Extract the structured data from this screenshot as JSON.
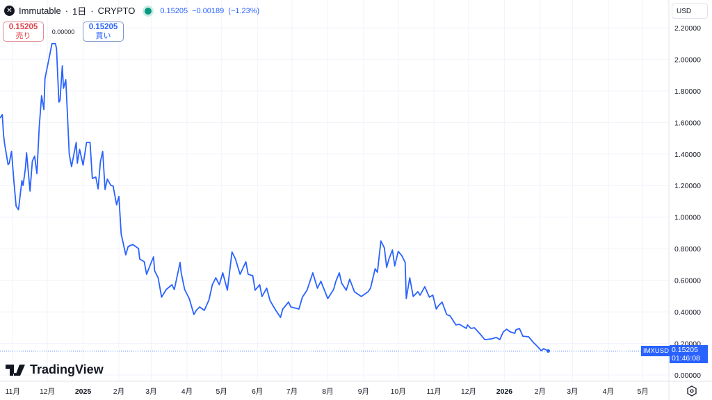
{
  "header": {
    "symbol": "Immutable",
    "interval": "1日",
    "exchange": "CRYPTO",
    "price": "0.15205",
    "change": "−0.00189",
    "change_pct": "(−1.23%)",
    "separator": "·"
  },
  "trade": {
    "sell_price": "0.15205",
    "sell_label": "売り",
    "spread": "0.00000",
    "buy_price": "0.15205",
    "buy_label": "買い"
  },
  "currency": "USD",
  "brand": "TradingView",
  "last": {
    "symbol": "IMXUSD",
    "price": "0.15205",
    "countdown": "01:46:08"
  },
  "colors": {
    "line": "#2962ff",
    "grid": "#f0f3fa",
    "axis_text": "#131722"
  },
  "chart_data": {
    "type": "line",
    "series_name": "IMXUSD",
    "x_unit": "days since 2024-10-21",
    "ylim": [
      0,
      2.2
    ],
    "y_ticks": [
      "0.00000",
      "0.20000",
      "0.40000",
      "0.60000",
      "0.80000",
      "1.00000",
      "1.20000",
      "1.40000",
      "1.60000",
      "1.80000",
      "2.00000",
      "2.20000"
    ],
    "x_ticks": [
      {
        "label": "11月",
        "day": 11
      },
      {
        "label": "12月",
        "day": 41
      },
      {
        "label": "2025",
        "day": 72
      },
      {
        "label": "2月",
        "day": 103
      },
      {
        "label": "3月",
        "day": 131
      },
      {
        "label": "4月",
        "day": 162
      },
      {
        "label": "5月",
        "day": 192
      },
      {
        "label": "6月",
        "day": 223
      },
      {
        "label": "7月",
        "day": 253
      },
      {
        "label": "8月",
        "day": 284
      },
      {
        "label": "9月",
        "day": 315
      },
      {
        "label": "10月",
        "day": 345
      },
      {
        "label": "11月",
        "day": 376
      },
      {
        "label": "12月",
        "day": 406
      },
      {
        "label": "2026",
        "day": 437
      },
      {
        "label": "2月",
        "day": 468
      },
      {
        "label": "3月",
        "day": 496
      },
      {
        "label": "4月",
        "day": 527
      },
      {
        "label": "5月",
        "day": 557
      }
    ],
    "points": [
      [
        0,
        1.628
      ],
      [
        2,
        1.65
      ],
      [
        3,
        1.527
      ],
      [
        4,
        1.465
      ],
      [
        7,
        1.333
      ],
      [
        8,
        1.342
      ],
      [
        10,
        1.417
      ],
      [
        12,
        1.232
      ],
      [
        14,
        1.069
      ],
      [
        16,
        1.047
      ],
      [
        19,
        1.232
      ],
      [
        20,
        1.201
      ],
      [
        22,
        1.307
      ],
      [
        23,
        1.408
      ],
      [
        26,
        1.166
      ],
      [
        28,
        1.355
      ],
      [
        30,
        1.386
      ],
      [
        32,
        1.276
      ],
      [
        34,
        1.571
      ],
      [
        36,
        1.769
      ],
      [
        38,
        1.681
      ],
      [
        39,
        1.879
      ],
      [
        43,
        2.024
      ],
      [
        45,
        2.099
      ],
      [
        48,
        2.099
      ],
      [
        49,
        2.068
      ],
      [
        51,
        1.729
      ],
      [
        52,
        1.738
      ],
      [
        54,
        1.958
      ],
      [
        55,
        1.817
      ],
      [
        57,
        1.87
      ],
      [
        58,
        1.716
      ],
      [
        60,
        1.399
      ],
      [
        62,
        1.32
      ],
      [
        66,
        1.474
      ],
      [
        67,
        1.342
      ],
      [
        69,
        1.43
      ],
      [
        72,
        1.329
      ],
      [
        75,
        1.474
      ],
      [
        78,
        1.474
      ],
      [
        80,
        1.245
      ],
      [
        83,
        1.254
      ],
      [
        85,
        1.179
      ],
      [
        87,
        1.351
      ],
      [
        89,
        1.417
      ],
      [
        91,
        1.175
      ],
      [
        93,
        1.241
      ],
      [
        96,
        1.201
      ],
      [
        98,
        1.197
      ],
      [
        101,
        1.078
      ],
      [
        103,
        1.131
      ],
      [
        105,
        0.893
      ],
      [
        109,
        0.761
      ],
      [
        111,
        0.814
      ],
      [
        115,
        0.827
      ],
      [
        120,
        0.801
      ],
      [
        121,
        0.735
      ],
      [
        125,
        0.717
      ],
      [
        127,
        0.638
      ],
      [
        131,
        0.713
      ],
      [
        133,
        0.748
      ],
      [
        134,
        0.66
      ],
      [
        137,
        0.616
      ],
      [
        140,
        0.493
      ],
      [
        144,
        0.541
      ],
      [
        149,
        0.572
      ],
      [
        151,
        0.541
      ],
      [
        156,
        0.713
      ],
      [
        157,
        0.647
      ],
      [
        160,
        0.541
      ],
      [
        164,
        0.484
      ],
      [
        168,
        0.383
      ],
      [
        170,
        0.409
      ],
      [
        173,
        0.431
      ],
      [
        177,
        0.409
      ],
      [
        181,
        0.475
      ],
      [
        184,
        0.572
      ],
      [
        187,
        0.616
      ],
      [
        190,
        0.572
      ],
      [
        193,
        0.647
      ],
      [
        197,
        0.537
      ],
      [
        201,
        0.779
      ],
      [
        204,
        0.735
      ],
      [
        208,
        0.638
      ],
      [
        213,
        0.717
      ],
      [
        215,
        0.638
      ],
      [
        219,
        0.629
      ],
      [
        221,
        0.537
      ],
      [
        225,
        0.572
      ],
      [
        227,
        0.497
      ],
      [
        231,
        0.55
      ],
      [
        234,
        0.471
      ],
      [
        239,
        0.409
      ],
      [
        243,
        0.365
      ],
      [
        245,
        0.418
      ],
      [
        250,
        0.462
      ],
      [
        252,
        0.431
      ],
      [
        259,
        0.418
      ],
      [
        262,
        0.493
      ],
      [
        266,
        0.537
      ],
      [
        271,
        0.647
      ],
      [
        275,
        0.55
      ],
      [
        278,
        0.594
      ],
      [
        284,
        0.484
      ],
      [
        289,
        0.541
      ],
      [
        291,
        0.594
      ],
      [
        294,
        0.647
      ],
      [
        296,
        0.581
      ],
      [
        300,
        0.537
      ],
      [
        303,
        0.607
      ],
      [
        307,
        0.528
      ],
      [
        313,
        0.497
      ],
      [
        319,
        0.528
      ],
      [
        321,
        0.55
      ],
      [
        325,
        0.673
      ],
      [
        327,
        0.651
      ],
      [
        330,
        0.849
      ],
      [
        333,
        0.805
      ],
      [
        335,
        0.682
      ],
      [
        337,
        0.735
      ],
      [
        340,
        0.792
      ],
      [
        342,
        0.691
      ],
      [
        345,
        0.783
      ],
      [
        348,
        0.757
      ],
      [
        351,
        0.713
      ],
      [
        352,
        0.484
      ],
      [
        355,
        0.616
      ],
      [
        358,
        0.497
      ],
      [
        362,
        0.528
      ],
      [
        364,
        0.506
      ],
      [
        368,
        0.559
      ],
      [
        372,
        0.493
      ],
      [
        375,
        0.506
      ],
      [
        378,
        0.418
      ],
      [
        380,
        0.44
      ],
      [
        383,
        0.462
      ],
      [
        387,
        0.383
      ],
      [
        390,
        0.374
      ],
      [
        395,
        0.317
      ],
      [
        398,
        0.321
      ],
      [
        404,
        0.295
      ],
      [
        405,
        0.317
      ],
      [
        408,
        0.295
      ],
      [
        411,
        0.299
      ],
      [
        417,
        0.251
      ],
      [
        420,
        0.224
      ],
      [
        426,
        0.229
      ],
      [
        430,
        0.238
      ],
      [
        433,
        0.224
      ],
      [
        436,
        0.273
      ],
      [
        439,
        0.29
      ],
      [
        442,
        0.273
      ],
      [
        446,
        0.264
      ],
      [
        447,
        0.286
      ],
      [
        450,
        0.295
      ],
      [
        453,
        0.246
      ],
      [
        458,
        0.242
      ],
      [
        462,
        0.207
      ],
      [
        465,
        0.185
      ],
      [
        469,
        0.154
      ],
      [
        471,
        0.167
      ],
      [
        475,
        0.152
      ]
    ],
    "last_value": 0.15205
  }
}
